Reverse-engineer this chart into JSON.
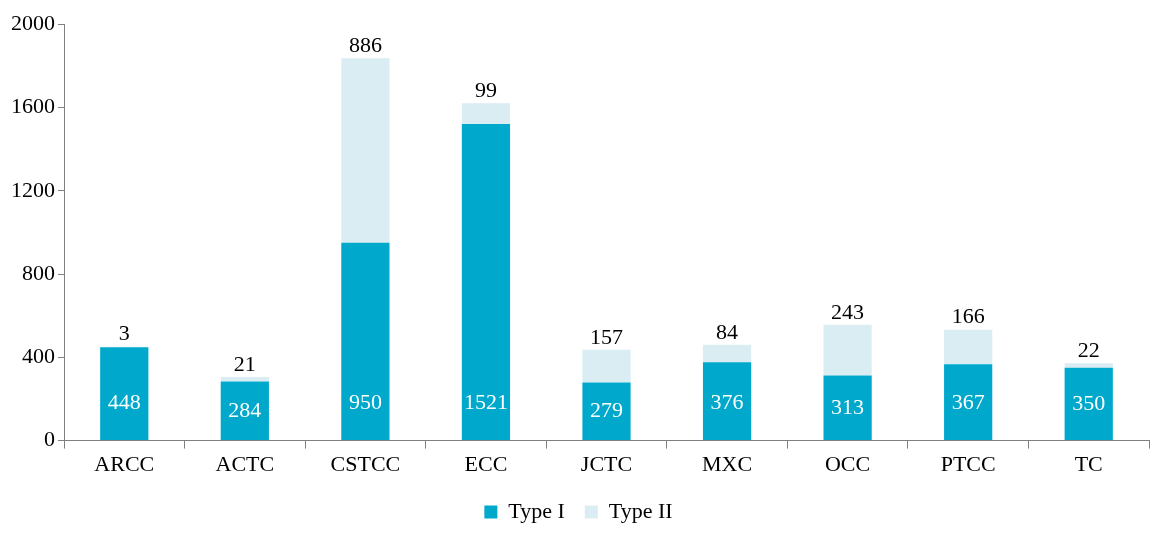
{
  "chart_data": {
    "type": "bar",
    "stacked": true,
    "categories": [
      "ARCC",
      "ACTC",
      "CSTCC",
      "ECC",
      "JCTC",
      "MXC",
      "OCC",
      "PTCC",
      "TC"
    ],
    "series": [
      {
        "name": "Type I",
        "color": "#00a8cc",
        "values": [
          448,
          284,
          950,
          1521,
          279,
          376,
          313,
          367,
          350
        ]
      },
      {
        "name": "Type II",
        "color": "#daedf3",
        "values": [
          3,
          21,
          886,
          99,
          157,
          84,
          243,
          166,
          22
        ]
      }
    ],
    "ylim": [
      0,
      2000
    ],
    "yticks": [
      0,
      400,
      800,
      1200,
      1600,
      2000
    ],
    "grid": false,
    "legend": "bottom",
    "data_labels": true
  }
}
